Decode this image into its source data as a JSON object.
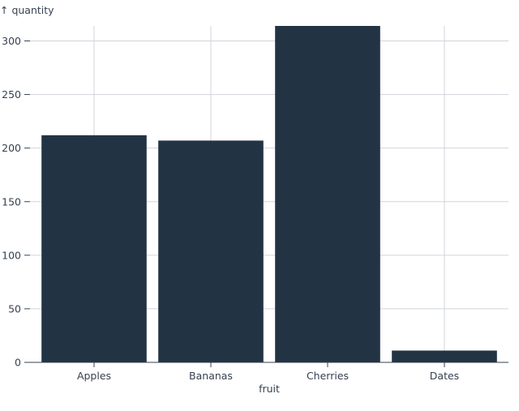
{
  "chart_data": {
    "type": "bar",
    "title": "",
    "xlabel": "fruit",
    "ylabel": "↑ quantity",
    "categories": [
      "Apples",
      "Bananas",
      "Cherries",
      "Dates"
    ],
    "values": [
      212,
      207,
      314,
      11
    ],
    "ylim": [
      0,
      314
    ],
    "yticks": [
      0,
      50,
      100,
      150,
      200,
      250,
      300
    ],
    "grid": true,
    "bar_color": "#223344",
    "grid_color": "#d1d5db"
  }
}
